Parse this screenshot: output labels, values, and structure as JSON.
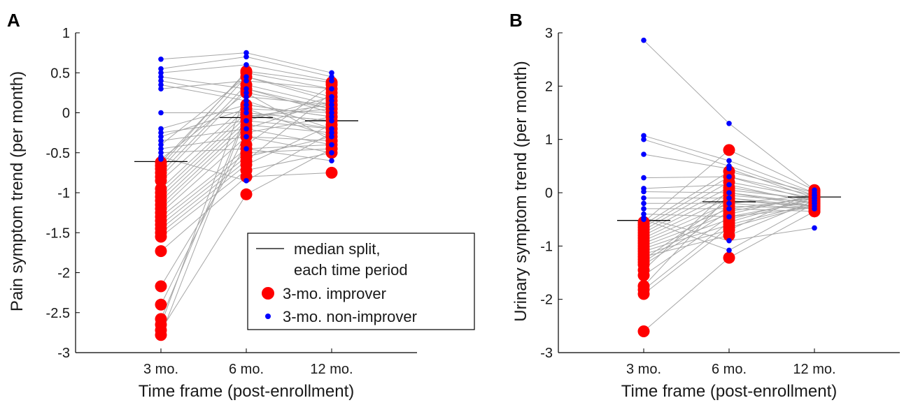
{
  "colors": {
    "improver": "#ff0000",
    "non_improver": "#0000ff",
    "trajectory": "#a6a6a6",
    "median": "#000000",
    "axis": "#000000"
  },
  "legend": {
    "line_label_1": "median split,",
    "line_label_2": "each time period",
    "improver_label": "3-mo. improver",
    "non_improver_label": "3-mo. non-improver"
  },
  "chart_data": [
    {
      "panel": "A",
      "type": "scatter",
      "xlabel": "Time frame (post-enrollment)",
      "ylabel": "Pain symptom trend (per month)",
      "categories": [
        "3 mo.",
        "6 mo.",
        "12 mo."
      ],
      "ylim": [
        -3,
        1
      ],
      "yticks": [
        "1",
        "0.5",
        "0",
        "-0.5",
        "-1",
        "-1.5",
        "-2",
        "-2.5",
        "-3"
      ],
      "median": [
        -0.61,
        -0.06,
        -0.1
      ],
      "grid": false,
      "legend_position": "bottom-right",
      "series": [
        {
          "name": "3-mo. improver",
          "points": [
            [
              -0.62,
              0.5,
              0.3
            ],
            [
              -0.66,
              0.52,
              0.38
            ],
            [
              -0.7,
              0.45,
              0.2
            ],
            [
              -0.75,
              0.35,
              0.1
            ],
            [
              -0.8,
              0.3,
              0.05
            ],
            [
              -0.85,
              0.1,
              -0.05
            ],
            [
              -0.95,
              0.05,
              0.0
            ],
            [
              -1.0,
              0.0,
              -0.1
            ],
            [
              -1.05,
              -0.05,
              0.1
            ],
            [
              -1.1,
              -0.1,
              -0.2
            ],
            [
              -1.15,
              -0.15,
              -0.25
            ],
            [
              -1.2,
              -0.2,
              0.15
            ],
            [
              -1.25,
              -0.3,
              -0.35
            ],
            [
              -1.3,
              -0.45,
              -0.4
            ],
            [
              -1.35,
              -0.5,
              -0.45
            ],
            [
              -1.4,
              -0.55,
              -0.3
            ],
            [
              -1.45,
              -0.6,
              0.25
            ],
            [
              -1.5,
              -0.65,
              -0.15
            ],
            [
              -1.55,
              -0.72,
              -0.5
            ],
            [
              -1.73,
              -0.8,
              -0.75
            ],
            [
              -2.17,
              -0.4,
              0.35
            ],
            [
              -2.4,
              -0.25,
              -0.05
            ],
            [
              -2.58,
              -0.02,
              -0.2
            ],
            [
              -2.65,
              0.25,
              -0.35
            ],
            [
              -2.72,
              -1.02,
              -0.45
            ],
            [
              -2.78,
              -0.05,
              0.05
            ]
          ]
        },
        {
          "name": "3-mo. non-improver",
          "points": [
            [
              0.67,
              0.75,
              0.5
            ],
            [
              0.55,
              0.7,
              0.45
            ],
            [
              0.5,
              0.6,
              0.4
            ],
            [
              0.45,
              0.3,
              0.0
            ],
            [
              0.4,
              0.2,
              0.1
            ],
            [
              0.35,
              0.15,
              -0.2
            ],
            [
              0.3,
              0.4,
              0.3
            ],
            [
              0.0,
              0.0,
              -0.1
            ],
            [
              -0.2,
              0.1,
              -0.05
            ],
            [
              -0.25,
              -0.1,
              0.2
            ],
            [
              -0.3,
              0.05,
              -0.3
            ],
            [
              -0.35,
              -0.2,
              -0.4
            ],
            [
              -0.4,
              0.45,
              0.15
            ],
            [
              -0.45,
              -0.3,
              -0.5
            ],
            [
              -0.5,
              -0.45,
              -0.6
            ],
            [
              -0.55,
              -0.85,
              -0.25
            ],
            [
              -0.58,
              0.25,
              0.05
            ]
          ]
        }
      ]
    },
    {
      "panel": "B",
      "type": "scatter",
      "xlabel": "Time frame (post-enrollment)",
      "ylabel": "Urinary symptom trend (per month)",
      "categories": [
        "3 mo.",
        "6 mo.",
        "12 mo."
      ],
      "ylim": [
        -3,
        3
      ],
      "yticks": [
        "3",
        "2",
        "1",
        "0",
        "-1",
        "-2",
        "-3"
      ],
      "median": [
        -0.52,
        -0.17,
        -0.08
      ],
      "grid": false,
      "series": [
        {
          "name": "3-mo. improver",
          "points": [
            [
              -0.55,
              0.8,
              0.05
            ],
            [
              -0.6,
              0.4,
              0.0
            ],
            [
              -0.65,
              0.3,
              -0.05
            ],
            [
              -0.7,
              0.2,
              -0.1
            ],
            [
              -0.75,
              0.1,
              -0.15
            ],
            [
              -0.8,
              0.0,
              -0.2
            ],
            [
              -0.85,
              -0.1,
              -0.25
            ],
            [
              -0.9,
              -0.2,
              -0.3
            ],
            [
              -0.95,
              -0.3,
              -0.35
            ],
            [
              -1.0,
              -0.4,
              -0.05
            ],
            [
              -1.05,
              -0.5,
              -0.1
            ],
            [
              -1.1,
              -0.6,
              -0.2
            ],
            [
              -1.15,
              -0.7,
              0.02
            ],
            [
              -1.2,
              -0.8,
              -0.15
            ],
            [
              -1.25,
              -0.15,
              -0.25
            ],
            [
              -1.3,
              -0.25,
              -0.3
            ],
            [
              -1.35,
              -0.35,
              -0.08
            ],
            [
              -1.45,
              0.05,
              -0.12
            ],
            [
              -1.55,
              -0.45,
              -0.28
            ],
            [
              -1.75,
              -0.05,
              -0.18
            ],
            [
              -1.82,
              -0.55,
              -0.1
            ],
            [
              -1.9,
              -0.65,
              -0.22
            ],
            [
              -2.6,
              -1.22,
              -0.35
            ]
          ]
        },
        {
          "name": "3-mo. non-improver",
          "points": [
            [
              2.86,
              1.3,
              0.05
            ],
            [
              1.07,
              0.6,
              0.0
            ],
            [
              1.0,
              0.5,
              -0.05
            ],
            [
              0.72,
              0.45,
              -0.1
            ],
            [
              0.28,
              0.3,
              -0.15
            ],
            [
              0.08,
              0.15,
              -0.2
            ],
            [
              0.02,
              0.0,
              -0.25
            ],
            [
              -0.1,
              -0.1,
              -0.3
            ],
            [
              -0.2,
              -0.2,
              -0.05
            ],
            [
              -0.3,
              -0.3,
              -0.1
            ],
            [
              -0.4,
              -0.45,
              -0.15
            ],
            [
              -0.47,
              -0.9,
              -0.66
            ],
            [
              -0.5,
              -1.08,
              -0.2
            ]
          ]
        }
      ]
    }
  ]
}
